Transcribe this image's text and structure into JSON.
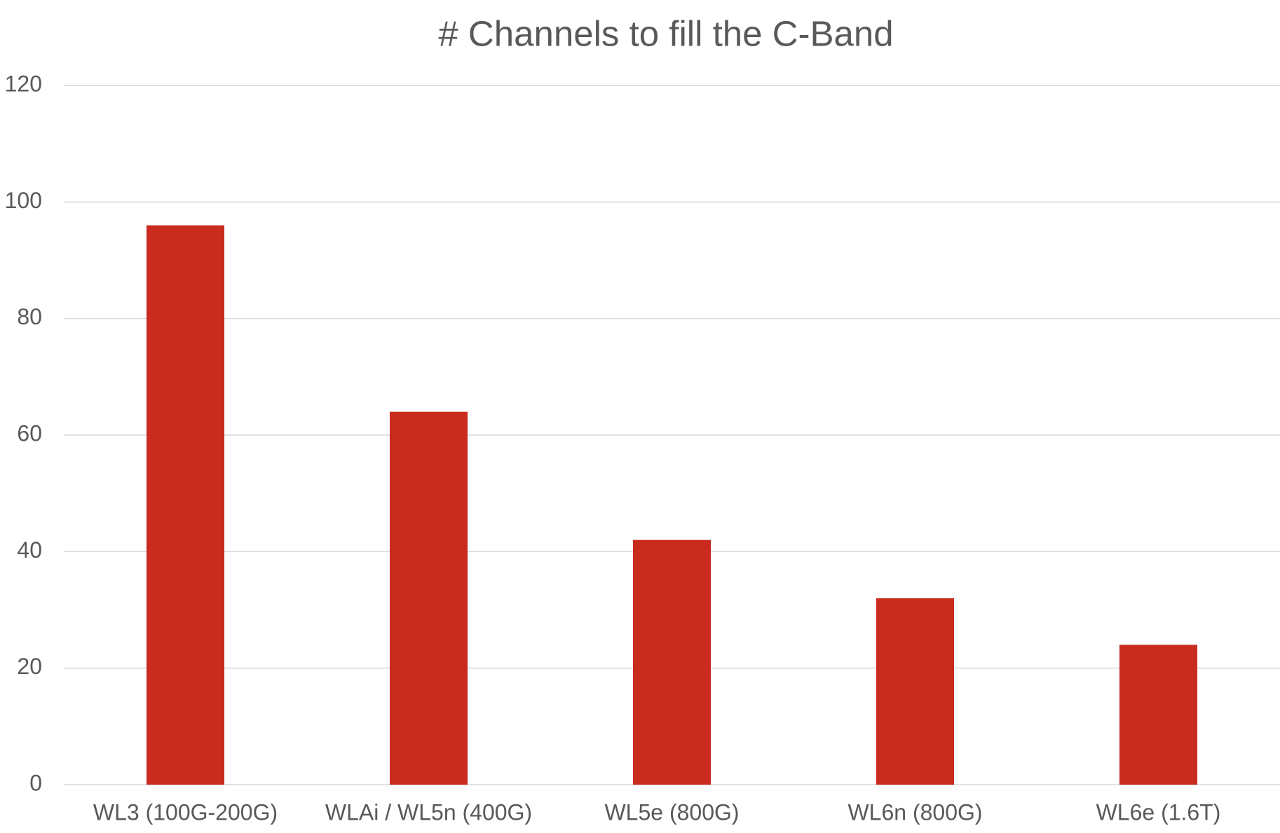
{
  "chart_data": {
    "type": "bar",
    "title": "# Channels to fill the C-Band",
    "categories": [
      "WL3 (100G-200G)",
      "WLAi / WL5n (400G)",
      "WL5e (800G)",
      "WL6n (800G)",
      "WL6e (1.6T)"
    ],
    "values": [
      96,
      64,
      42,
      32,
      24
    ],
    "color": "#c92b1f",
    "ylim": [
      0,
      120
    ],
    "yticks": [
      0,
      20,
      40,
      60,
      80,
      100,
      120
    ],
    "grid": true
  }
}
